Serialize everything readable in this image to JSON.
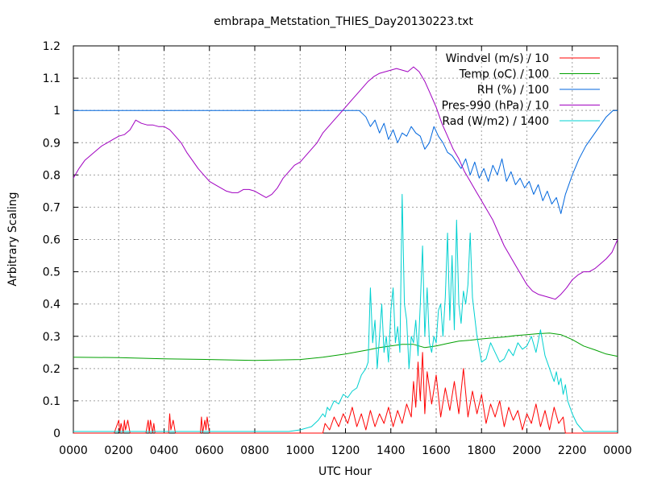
{
  "chart_data": {
    "type": "line",
    "title": "embrapa_Metstation_THIES_Day20130223.txt",
    "xlabel": "UTC Hour",
    "ylabel": "Arbitrary Scaling",
    "xlim": [
      0,
      24
    ],
    "ylim": [
      0,
      1.2
    ],
    "grid": true,
    "legend_position": "top-right",
    "x_ticks": [
      0,
      2,
      4,
      6,
      8,
      10,
      12,
      14,
      16,
      18,
      20,
      22,
      24
    ],
    "x_tick_labels": [
      "0000",
      "0200",
      "0400",
      "0600",
      "0800",
      "1000",
      "1200",
      "1400",
      "1600",
      "1800",
      "2000",
      "2200",
      "0000"
    ],
    "y_ticks": [
      0,
      0.1,
      0.2,
      0.3,
      0.4,
      0.5,
      0.6,
      0.7,
      0.8,
      0.9,
      1,
      1.1,
      1.2
    ],
    "y_tick_labels": [
      "0",
      "0.1",
      "0.2",
      "0.3",
      "0.4",
      "0.5",
      "0.6",
      "0.7",
      "0.8",
      "0.9",
      "1",
      "1.1",
      "1.2"
    ],
    "series": [
      {
        "name": "Windvel (m/s) / 10",
        "color": "#ff0000",
        "x": [
          0,
          1.8,
          2.0,
          2.05,
          2.1,
          2.2,
          2.25,
          2.3,
          2.4,
          2.5,
          2.6,
          2.8,
          3.2,
          3.3,
          3.35,
          3.4,
          3.5,
          3.55,
          3.6,
          3.8,
          4.2,
          4.25,
          4.3,
          4.4,
          4.5,
          4.6,
          4.8,
          5.6,
          5.65,
          5.7,
          5.8,
          5.85,
          5.9,
          6.0,
          6.1,
          6.3,
          11.0,
          11.1,
          11.3,
          11.5,
          11.7,
          11.9,
          12.1,
          12.3,
          12.5,
          12.7,
          12.9,
          13.1,
          13.3,
          13.5,
          13.7,
          13.9,
          14.1,
          14.3,
          14.5,
          14.7,
          14.9,
          15.0,
          15.1,
          15.2,
          15.3,
          15.4,
          15.5,
          15.6,
          15.8,
          16.0,
          16.2,
          16.4,
          16.6,
          16.8,
          17.0,
          17.2,
          17.4,
          17.6,
          17.8,
          18.0,
          18.2,
          18.4,
          18.6,
          18.8,
          19.0,
          19.2,
          19.4,
          19.6,
          19.8,
          20.0,
          20.2,
          20.4,
          20.6,
          20.8,
          21.0,
          21.2,
          21.4,
          21.6,
          21.7,
          21.8,
          24.0
        ],
        "y": [
          0,
          0,
          0.04,
          0,
          0.03,
          0,
          0.04,
          0.01,
          0.04,
          0,
          0,
          0,
          0,
          0.04,
          0,
          0.04,
          0,
          0.03,
          0,
          0,
          0,
          0.06,
          0.01,
          0.04,
          0,
          0,
          0,
          0,
          0.05,
          0,
          0.04,
          0.01,
          0.05,
          0,
          0,
          0,
          0,
          0.03,
          0.01,
          0.05,
          0.02,
          0.06,
          0.03,
          0.08,
          0.02,
          0.06,
          0.01,
          0.07,
          0.02,
          0.06,
          0.03,
          0.08,
          0.02,
          0.07,
          0.03,
          0.09,
          0.05,
          0.16,
          0.08,
          0.22,
          0.1,
          0.25,
          0.06,
          0.19,
          0.09,
          0.18,
          0.05,
          0.14,
          0.07,
          0.16,
          0.06,
          0.2,
          0.05,
          0.13,
          0.06,
          0.12,
          0.03,
          0.09,
          0.05,
          0.1,
          0.02,
          0.08,
          0.04,
          0.07,
          0.01,
          0.06,
          0.03,
          0.09,
          0.02,
          0.07,
          0.01,
          0.08,
          0.03,
          0.05,
          0.0,
          0.0,
          0
        ]
      },
      {
        "name": "Temp (oC) / 100",
        "color": "#00a000",
        "x": [
          0,
          2,
          4,
          6,
          8,
          10,
          11,
          12,
          13,
          13.5,
          14,
          14.5,
          15,
          15.5,
          16,
          16.5,
          17,
          17.5,
          18,
          18.5,
          19,
          19.5,
          20,
          20.5,
          21,
          21.5,
          22,
          22.5,
          23,
          23.5,
          24
        ],
        "y": [
          0.235,
          0.234,
          0.23,
          0.228,
          0.225,
          0.228,
          0.235,
          0.245,
          0.258,
          0.265,
          0.27,
          0.275,
          0.275,
          0.265,
          0.27,
          0.278,
          0.285,
          0.288,
          0.292,
          0.295,
          0.298,
          0.302,
          0.305,
          0.308,
          0.31,
          0.305,
          0.29,
          0.27,
          0.258,
          0.245,
          0.238
        ]
      },
      {
        "name": "RH (%) / 100",
        "color": "#0066dd",
        "x": [
          0,
          10,
          12,
          12.6,
          12.9,
          13.1,
          13.3,
          13.5,
          13.7,
          13.9,
          14.1,
          14.3,
          14.5,
          14.7,
          14.9,
          15.1,
          15.3,
          15.5,
          15.7,
          15.9,
          16.1,
          16.3,
          16.5,
          16.7,
          16.9,
          17.1,
          17.3,
          17.5,
          17.7,
          17.9,
          18.1,
          18.3,
          18.5,
          18.7,
          18.9,
          19.1,
          19.3,
          19.5,
          19.7,
          19.9,
          20.1,
          20.3,
          20.5,
          20.7,
          20.9,
          21.1,
          21.3,
          21.5,
          21.7,
          22.0,
          22.3,
          22.6,
          22.9,
          23.2,
          23.5,
          23.8,
          24
        ],
        "y": [
          1.0,
          1.0,
          1.0,
          1.0,
          0.98,
          0.95,
          0.97,
          0.93,
          0.96,
          0.91,
          0.94,
          0.9,
          0.93,
          0.92,
          0.95,
          0.93,
          0.92,
          0.88,
          0.9,
          0.95,
          0.92,
          0.9,
          0.87,
          0.86,
          0.84,
          0.82,
          0.85,
          0.8,
          0.84,
          0.79,
          0.82,
          0.78,
          0.83,
          0.8,
          0.85,
          0.78,
          0.81,
          0.77,
          0.79,
          0.76,
          0.78,
          0.74,
          0.77,
          0.72,
          0.75,
          0.71,
          0.73,
          0.68,
          0.74,
          0.8,
          0.85,
          0.89,
          0.92,
          0.95,
          0.98,
          1.0,
          1.0
        ]
      },
      {
        "name": "Pres-990 (hPa) / 10",
        "color": "#a000c0",
        "x": [
          0,
          0.25,
          0.5,
          0.75,
          1.0,
          1.25,
          1.5,
          1.75,
          2.0,
          2.25,
          2.5,
          2.75,
          3.0,
          3.25,
          3.5,
          3.75,
          4.0,
          4.25,
          4.5,
          4.75,
          5.0,
          5.25,
          5.5,
          5.75,
          6.0,
          6.25,
          6.5,
          6.75,
          7.0,
          7.25,
          7.5,
          7.75,
          8.0,
          8.25,
          8.5,
          8.75,
          9.0,
          9.25,
          9.5,
          9.75,
          10.0,
          10.25,
          10.5,
          10.75,
          11.0,
          11.25,
          11.5,
          11.75,
          12.0,
          12.25,
          12.5,
          12.75,
          13.0,
          13.25,
          13.5,
          13.75,
          14.0,
          14.25,
          14.5,
          14.75,
          15.0,
          15.25,
          15.5,
          15.75,
          16.0,
          16.25,
          16.5,
          16.75,
          17.0,
          17.25,
          17.5,
          17.75,
          18.0,
          18.25,
          18.5,
          18.75,
          19.0,
          19.25,
          19.5,
          19.75,
          20.0,
          20.25,
          20.5,
          20.75,
          21.0,
          21.25,
          21.5,
          21.75,
          22.0,
          22.25,
          22.5,
          22.75,
          23.0,
          23.25,
          23.5,
          23.75,
          24.0
        ],
        "y": [
          0.79,
          0.82,
          0.845,
          0.86,
          0.875,
          0.89,
          0.9,
          0.91,
          0.92,
          0.925,
          0.94,
          0.97,
          0.96,
          0.955,
          0.955,
          0.95,
          0.95,
          0.94,
          0.92,
          0.9,
          0.87,
          0.845,
          0.82,
          0.8,
          0.78,
          0.77,
          0.76,
          0.75,
          0.745,
          0.745,
          0.755,
          0.755,
          0.75,
          0.74,
          0.73,
          0.74,
          0.76,
          0.79,
          0.81,
          0.83,
          0.84,
          0.86,
          0.88,
          0.9,
          0.93,
          0.95,
          0.97,
          0.99,
          1.01,
          1.03,
          1.05,
          1.07,
          1.09,
          1.105,
          1.115,
          1.12,
          1.125,
          1.13,
          1.125,
          1.12,
          1.135,
          1.12,
          1.09,
          1.05,
          1.01,
          0.96,
          0.92,
          0.88,
          0.85,
          0.81,
          0.78,
          0.75,
          0.72,
          0.69,
          0.66,
          0.62,
          0.58,
          0.55,
          0.52,
          0.49,
          0.46,
          0.44,
          0.43,
          0.425,
          0.42,
          0.415,
          0.43,
          0.45,
          0.475,
          0.49,
          0.5,
          0.5,
          0.51,
          0.525,
          0.54,
          0.56,
          0.6
        ]
      },
      {
        "name": "Rad (W/m2) / 1400",
        "color": "#00d0d0",
        "x": [
          0,
          9.5,
          10.0,
          10.5,
          10.8,
          11.0,
          11.1,
          11.2,
          11.3,
          11.5,
          11.7,
          11.9,
          12.1,
          12.3,
          12.5,
          12.7,
          12.9,
          13.0,
          13.1,
          13.2,
          13.3,
          13.4,
          13.5,
          13.6,
          13.7,
          13.8,
          13.9,
          14.0,
          14.1,
          14.2,
          14.3,
          14.4,
          14.5,
          14.6,
          14.7,
          14.8,
          14.9,
          15.0,
          15.1,
          15.2,
          15.3,
          15.4,
          15.5,
          15.6,
          15.7,
          15.8,
          15.9,
          16.0,
          16.1,
          16.2,
          16.3,
          16.4,
          16.5,
          16.6,
          16.7,
          16.8,
          16.9,
          17.0,
          17.1,
          17.2,
          17.3,
          17.4,
          17.5,
          17.6,
          17.7,
          17.8,
          18.0,
          18.2,
          18.4,
          18.6,
          18.8,
          19.0,
          19.2,
          19.4,
          19.6,
          19.8,
          20.0,
          20.2,
          20.4,
          20.6,
          20.8,
          21.0,
          21.1,
          21.2,
          21.3,
          21.4,
          21.5,
          21.6,
          21.7,
          21.8,
          22.0,
          22.2,
          22.5,
          24.0
        ],
        "y": [
          0.005,
          0.005,
          0.01,
          0.02,
          0.04,
          0.06,
          0.05,
          0.08,
          0.07,
          0.1,
          0.09,
          0.12,
          0.11,
          0.13,
          0.14,
          0.18,
          0.2,
          0.22,
          0.45,
          0.28,
          0.35,
          0.2,
          0.3,
          0.4,
          0.25,
          0.3,
          0.22,
          0.38,
          0.45,
          0.28,
          0.33,
          0.25,
          0.74,
          0.4,
          0.35,
          0.2,
          0.3,
          0.28,
          0.35,
          0.24,
          0.4,
          0.58,
          0.3,
          0.45,
          0.28,
          0.25,
          0.3,
          0.28,
          0.38,
          0.4,
          0.3,
          0.42,
          0.62,
          0.35,
          0.55,
          0.32,
          0.66,
          0.4,
          0.34,
          0.44,
          0.4,
          0.46,
          0.62,
          0.42,
          0.36,
          0.3,
          0.22,
          0.23,
          0.28,
          0.25,
          0.22,
          0.23,
          0.26,
          0.24,
          0.28,
          0.26,
          0.27,
          0.3,
          0.25,
          0.32,
          0.24,
          0.2,
          0.18,
          0.16,
          0.19,
          0.15,
          0.17,
          0.12,
          0.15,
          0.1,
          0.06,
          0.03,
          0.005,
          0.005
        ]
      }
    ]
  }
}
